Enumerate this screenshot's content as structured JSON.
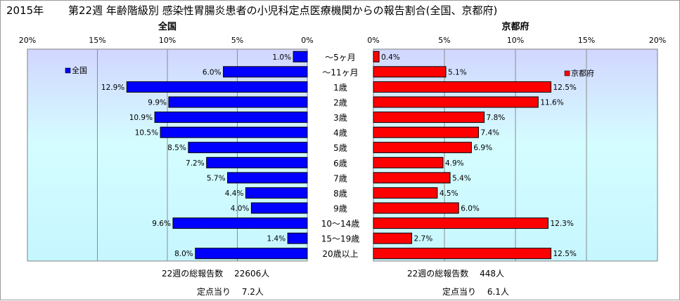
{
  "header": {
    "year": "2015年",
    "title": "第22週 年齢階級別 感染性胃腸炎患者の小児科定点医療機関からの報告割合(全国、京都府)"
  },
  "chart_data": [
    {
      "type": "bar",
      "orientation": "horizontal-left",
      "title": "全国",
      "xlim": [
        0,
        20
      ],
      "xticks": [
        "20%",
        "15%",
        "10%",
        "5%",
        "0%"
      ],
      "categories": [
        "～5ヶ月",
        "～11ヶ月",
        "1歳",
        "2歳",
        "3歳",
        "4歳",
        "5歳",
        "6歳",
        "7歳",
        "8歳",
        "9歳",
        "10～14歳",
        "15～19歳",
        "20歳以上"
      ],
      "series": [
        {
          "name": "全国",
          "color": "#0000ff",
          "values": [
            1.0,
            6.0,
            12.9,
            9.9,
            10.9,
            10.5,
            8.5,
            7.2,
            5.7,
            4.4,
            4.0,
            9.6,
            1.4,
            8.0
          ]
        }
      ],
      "labels": [
        "1.0%",
        "6.0%",
        "12.9%",
        "9.9%",
        "10.9%",
        "10.5%",
        "8.5%",
        "7.2%",
        "5.7%",
        "4.4%",
        "4.0%",
        "9.6%",
        "1.4%",
        "8.0%"
      ],
      "grid": true,
      "legend": "top-left"
    },
    {
      "type": "bar",
      "orientation": "horizontal-right",
      "title": "京都府",
      "xlim": [
        0,
        20
      ],
      "xticks": [
        "0%",
        "5%",
        "10%",
        "15%",
        "20%"
      ],
      "categories": [
        "～5ヶ月",
        "～11ヶ月",
        "1歳",
        "2歳",
        "3歳",
        "4歳",
        "5歳",
        "6歳",
        "7歳",
        "8歳",
        "9歳",
        "10～14歳",
        "15～19歳",
        "20歳以上"
      ],
      "series": [
        {
          "name": "京都府",
          "color": "#ff0000",
          "values": [
            0.4,
            5.1,
            12.5,
            11.6,
            7.8,
            7.4,
            6.9,
            4.9,
            5.4,
            4.5,
            6.0,
            12.3,
            2.7,
            12.5
          ]
        }
      ],
      "labels": [
        "0.4%",
        "5.1%",
        "12.5%",
        "11.6%",
        "7.8%",
        "7.4%",
        "6.9%",
        "4.9%",
        "5.4%",
        "4.5%",
        "6.0%",
        "12.3%",
        "2.7%",
        "12.5%"
      ],
      "grid": true,
      "legend": "top-right"
    }
  ],
  "footer": {
    "national_total": "22週の総報告数　 22606人",
    "national_per_site": "定点当り　 7.2人",
    "kyoto_total": "22週の総報告数　 448人",
    "kyoto_per_site": "定点当り　 6.1人"
  }
}
